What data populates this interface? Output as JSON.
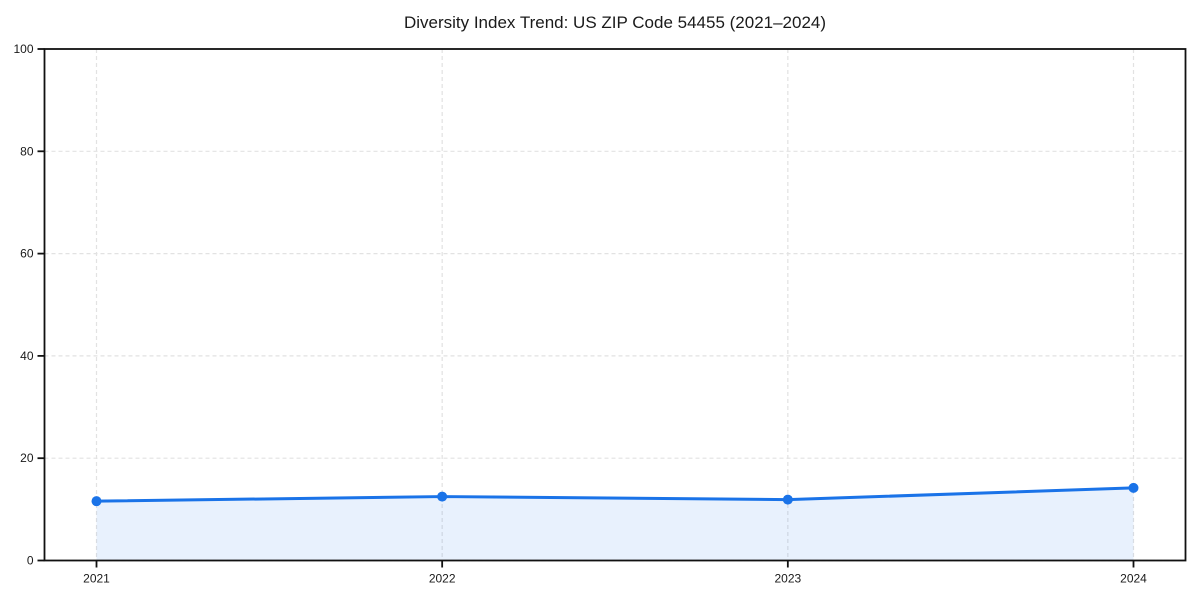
{
  "colors": {
    "line": "#1a73e8",
    "area_fill": "rgba(26,115,232,0.10)",
    "grid": "#e2e2e2",
    "spine": "#111111",
    "text": "#1a1a1a",
    "background": "#ffffff"
  },
  "chart_data": {
    "type": "line",
    "title": "Diversity Index Trend: US ZIP Code 54455 (2021–2024)",
    "xlabel": "",
    "ylabel": "",
    "x": [
      "2021",
      "2022",
      "2023",
      "2024"
    ],
    "series": [
      {
        "name": "Diversity Index",
        "values": [
          11.6,
          12.5,
          11.9,
          14.2
        ]
      }
    ],
    "ylim": [
      0,
      100
    ],
    "yticks": [
      0,
      20,
      40,
      60,
      80,
      100
    ],
    "grid": true,
    "grid_style": "dashed",
    "marker": "circle",
    "area_fill": true,
    "legend": "none"
  }
}
